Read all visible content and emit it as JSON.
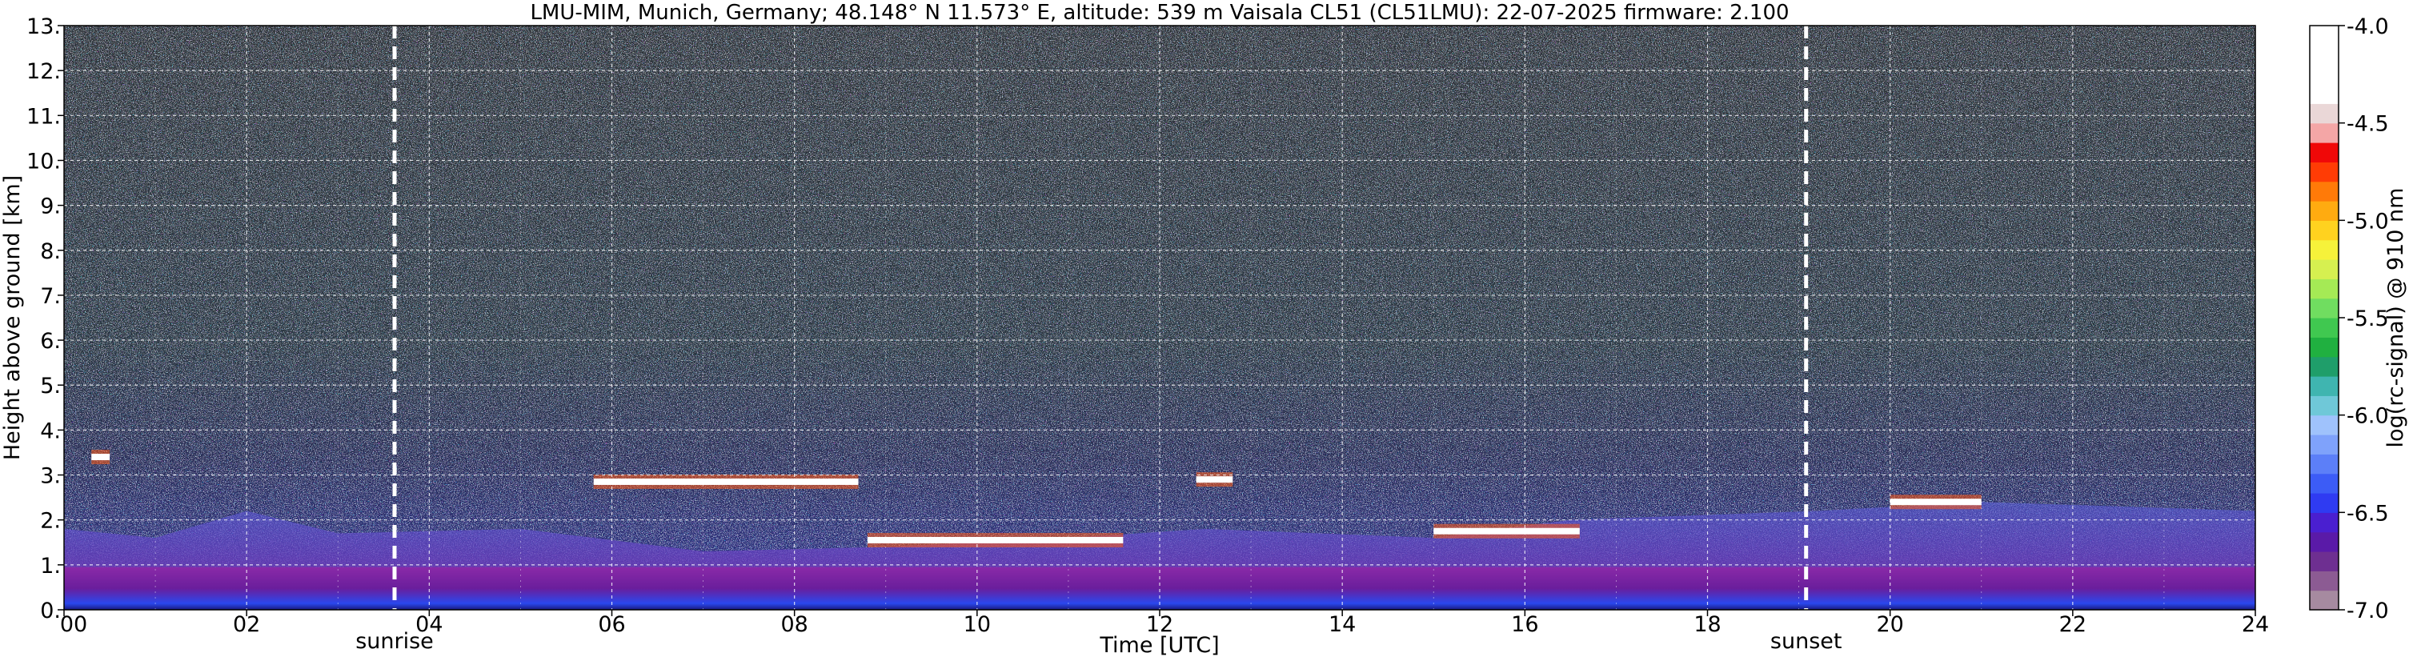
{
  "chart_data": {
    "type": "heatmap",
    "title": "LMU-MIM, Munich, Germany; 48.148° N 11.573° E, altitude: 539 m    Vaisala CL51 (CL51LMU): 22-07-2025    firmware: 2.100",
    "xlabel": "Time [UTC]",
    "ylabel": "Height above ground [km]",
    "xlim": [
      0,
      24
    ],
    "ylim": [
      0,
      13
    ],
    "x_ticks": [
      0,
      2,
      4,
      6,
      8,
      10,
      12,
      14,
      16,
      18,
      20,
      22,
      24
    ],
    "x_tick_labels": [
      "00",
      "02",
      "04",
      "06",
      "08",
      "10",
      "12",
      "14",
      "16",
      "18",
      "20",
      "22",
      "24"
    ],
    "y_ticks": [
      0,
      1,
      2,
      3,
      4,
      5,
      6,
      7,
      8,
      9,
      10,
      11,
      12,
      13
    ],
    "y_tick_labels": [
      "0.",
      "1.",
      "2.",
      "3.",
      "4.",
      "5.",
      "6.",
      "7.",
      "8.",
      "9.",
      "10.",
      "11.",
      "12.",
      "13."
    ],
    "grid": true,
    "colorbar": {
      "label": "log(rc-signal) @ 910 nm",
      "range": [
        -7.0,
        -4.0
      ],
      "ticks": [
        -7.0,
        -6.5,
        -6.0,
        -5.5,
        -5.0,
        -4.5,
        -4.0
      ],
      "tick_labels": [
        "-7.0",
        "-6.5",
        "-6.0",
        "-5.5",
        "-5.0",
        "-4.5",
        "-4.0"
      ],
      "colors": [
        "#a68aa0",
        "#8c5b93",
        "#6e2f91",
        "#5a1aa8",
        "#4a1fd0",
        "#2f3bf2",
        "#3c5cf6",
        "#5c7ff8",
        "#7fa2fb",
        "#9fc2fc",
        "#6fc8d8",
        "#3fb5b0",
        "#1f9e6a",
        "#20b040",
        "#40c850",
        "#70dd60",
        "#a5ea55",
        "#d6f050",
        "#f6f23a",
        "#ffd21f",
        "#ffab10",
        "#ff7a08",
        "#ff3c05",
        "#f00808",
        "#f4a6a6",
        "#ead7d7",
        "#ffffff",
        "#ffffff",
        "#ffffff",
        "#ffffff"
      ]
    },
    "events": [
      {
        "label": "sunrise",
        "time": 3.62
      },
      {
        "label": "sunset",
        "time": 19.08
      }
    ],
    "features": {
      "aerosol_layer_top_km": 0.95,
      "boundary_layer_tops": [
        {
          "time": 0.0,
          "height": 1.8
        },
        {
          "time": 1.0,
          "height": 1.6
        },
        {
          "time": 2.0,
          "height": 2.2
        },
        {
          "time": 3.0,
          "height": 1.7
        },
        {
          "time": 5.0,
          "height": 1.8
        },
        {
          "time": 7.0,
          "height": 1.3
        },
        {
          "time": 9.0,
          "height": 1.4
        },
        {
          "time": 11.0,
          "height": 1.6
        },
        {
          "time": 12.5,
          "height": 1.8
        },
        {
          "time": 15.0,
          "height": 1.6
        },
        {
          "time": 16.5,
          "height": 2.0
        },
        {
          "time": 19.2,
          "height": 2.2
        },
        {
          "time": 21.0,
          "height": 2.4
        },
        {
          "time": 24.0,
          "height": 2.2
        }
      ],
      "cloud_layers": [
        {
          "t_start": 0.3,
          "t_end": 0.5,
          "height": 3.4
        },
        {
          "t_start": 5.8,
          "t_end": 8.7,
          "height": 2.85
        },
        {
          "t_start": 8.8,
          "t_end": 11.6,
          "height": 1.55
        },
        {
          "t_start": 12.4,
          "t_end": 12.8,
          "height": 2.9
        },
        {
          "t_start": 15.0,
          "t_end": 16.6,
          "height": 1.75
        },
        {
          "t_start": 20.0,
          "t_end": 21.0,
          "height": 2.4
        }
      ]
    }
  }
}
